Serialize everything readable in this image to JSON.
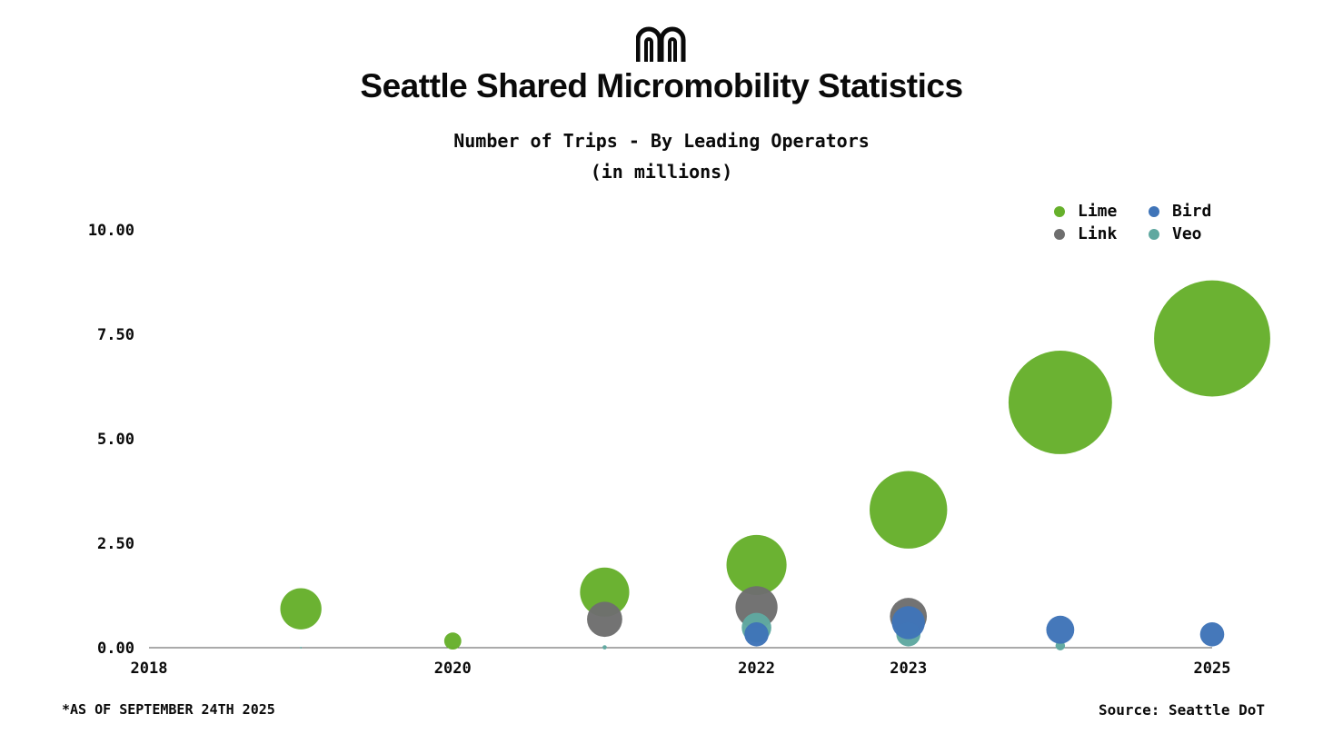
{
  "header": {
    "logo": "metro-arch-logo",
    "title": "Seattle Shared Micromobility Statistics",
    "subtitle_line1": "Number of Trips - By Leading Operators",
    "subtitle_line2": "(in millions)"
  },
  "legend": [
    {
      "name": "Lime",
      "color": "#66b02b"
    },
    {
      "name": "Bird",
      "color": "#3f74b8"
    },
    {
      "name": "Link",
      "color": "#6e6e6e"
    },
    {
      "name": "Veo",
      "color": "#5fa8a0"
    }
  ],
  "chart_data": {
    "type": "scatter",
    "bubble": true,
    "xlim": [
      2018,
      2025
    ],
    "ylim": [
      0,
      10
    ],
    "x_ticks": [
      "2018",
      "2020",
      "2022",
      "2023",
      "2025"
    ],
    "y_ticks": [
      "0.00",
      "2.50",
      "5.00",
      "7.50",
      "10.00"
    ],
    "grid": false,
    "legend_position": "top-right",
    "series": [
      {
        "name": "Lime",
        "color": "#66b02b",
        "points": [
          {
            "x": 2019,
            "y": 0.93
          },
          {
            "x": 2020,
            "y": 0.16
          },
          {
            "x": 2021,
            "y": 1.33
          },
          {
            "x": 2022,
            "y": 1.98
          },
          {
            "x": 2023,
            "y": 3.3
          },
          {
            "x": 2024,
            "y": 5.87
          },
          {
            "x": 2025,
            "y": 7.4
          }
        ]
      },
      {
        "name": "Link",
        "color": "#6e6e6e",
        "points": [
          {
            "x": 2021,
            "y": 0.68
          },
          {
            "x": 2022,
            "y": 0.97
          },
          {
            "x": 2023,
            "y": 0.75
          }
        ]
      },
      {
        "name": "Veo",
        "color": "#5fa8a0",
        "points": [
          {
            "x": 2019,
            "y": 0
          },
          {
            "x": 2021,
            "y": 0.01
          },
          {
            "x": 2022,
            "y": 0.48
          },
          {
            "x": 2023,
            "y": 0.32
          },
          {
            "x": 2024,
            "y": 0.05
          }
        ]
      },
      {
        "name": "Bird",
        "color": "#3f74b8",
        "points": [
          {
            "x": 2022,
            "y": 0.32
          },
          {
            "x": 2023,
            "y": 0.6
          },
          {
            "x": 2024,
            "y": 0.43
          },
          {
            "x": 2025,
            "y": 0.32
          }
        ]
      }
    ]
  },
  "footer": {
    "note": "*AS OF SEPTEMBER 24TH 2025",
    "source": "Source: Seattle DoT"
  }
}
